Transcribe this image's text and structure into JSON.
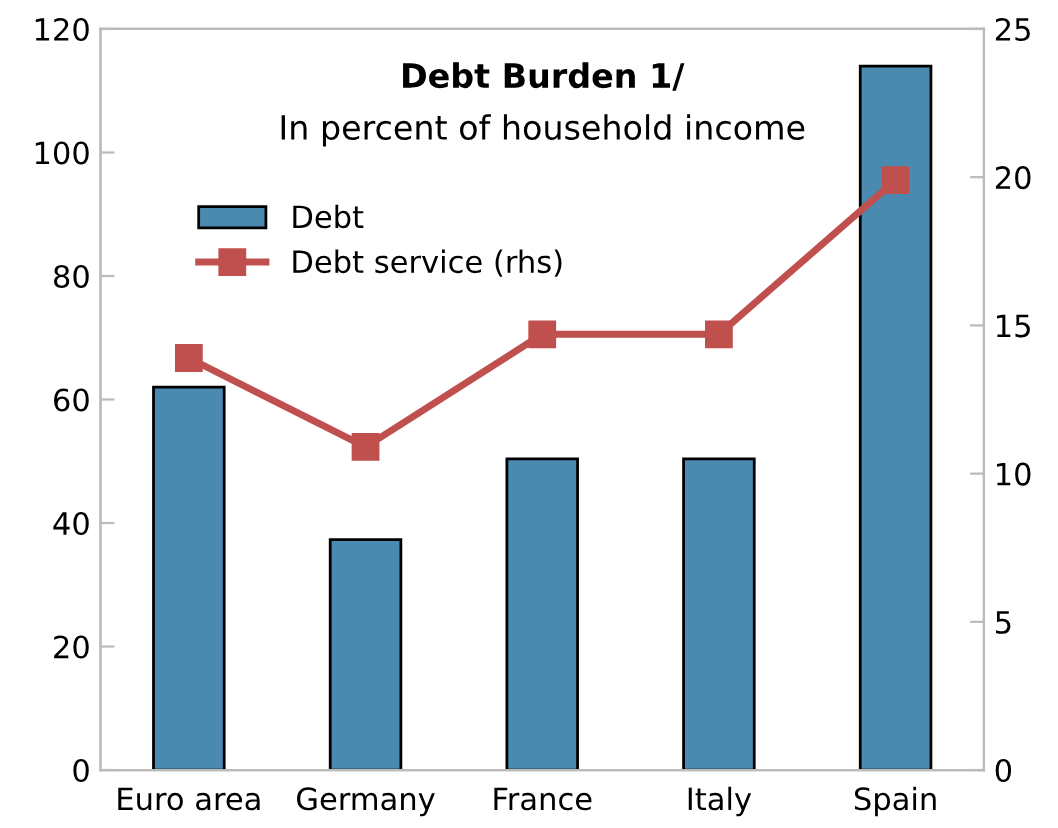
{
  "chart_data": {
    "type": "bar",
    "title": "Debt Burden 1/",
    "subtitle": "In percent of household income",
    "categories": [
      "Euro area",
      "Germany",
      "France",
      "Italy",
      "Spain"
    ],
    "series": [
      {
        "name": "Debt",
        "color": "#4a8ab0",
        "values": [
          62,
          37.3,
          50.4,
          50.4,
          114
        ]
      },
      {
        "name": "Debt service (rhs)",
        "type": "line",
        "axis": "y2",
        "color": "#c0504d",
        "marker": "square",
        "values": [
          13.9,
          10.9,
          14.7,
          14.7,
          19.9
        ]
      }
    ],
    "ylim": [
      0,
      120
    ],
    "yticks": [
      0,
      20,
      40,
      60,
      80,
      100,
      120
    ],
    "y2lim": [
      0,
      25
    ],
    "y2ticks": [
      0,
      5,
      10,
      15,
      20,
      25
    ],
    "grid": false,
    "legend": "top left"
  }
}
